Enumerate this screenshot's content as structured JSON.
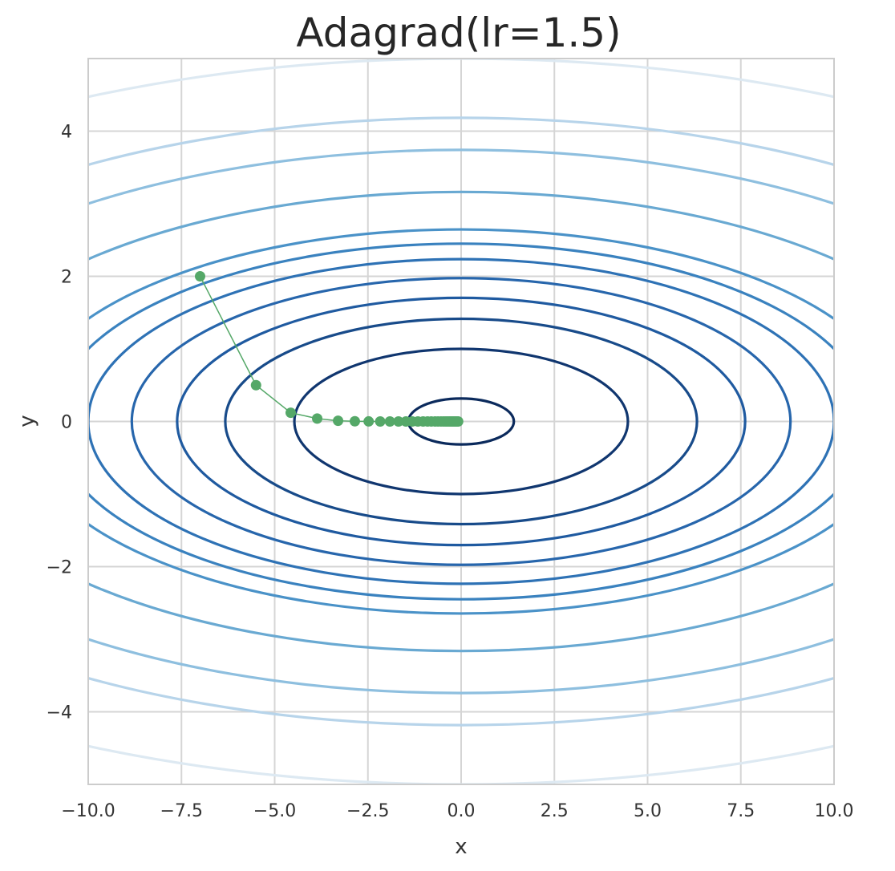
{
  "chart_data": {
    "type": "line",
    "title": "Adagrad(lr=1.5)",
    "xlabel": "x",
    "ylabel": "y",
    "xlim": [
      -10,
      10
    ],
    "ylim": [
      -5,
      5
    ],
    "xticks": [
      -10,
      -7.5,
      -5,
      -2.5,
      0,
      2.5,
      5,
      7.5,
      10
    ],
    "xtick_labels": [
      "−10.0",
      "−7.5",
      "−5.0",
      "−2.5",
      "0.0",
      "2.5",
      "5.0",
      "7.5",
      "10.0"
    ],
    "yticks": [
      -4,
      -2,
      0,
      2,
      4
    ],
    "ytick_labels": [
      "−4",
      "−2",
      "0",
      "2",
      "4"
    ],
    "grid": true,
    "contour": {
      "function": "f(x, y) = 0.1 x^2 + 2 y^2",
      "colormap": "Blues_r",
      "levels": [
        0.2,
        2.0,
        4.0,
        5.8,
        7.8,
        10.0,
        12.0,
        14.0,
        20.0,
        28.0,
        35.0,
        50.0
      ],
      "colors": [
        "#0b2a5c",
        "#10366f",
        "#184b8a",
        "#1f5aa0",
        "#2766ac",
        "#2e72b5",
        "#3a82bf",
        "#4a92c8",
        "#69a9d2",
        "#8ebfdf",
        "#b7d4ea",
        "#dde9f2"
      ]
    },
    "series": [
      {
        "color": "#55a868",
        "marker": "o",
        "x": [
          -7.0,
          -5.5,
          -4.57,
          -3.86,
          -3.3,
          -2.85,
          -2.48,
          -2.17,
          -1.91,
          -1.68,
          -1.48,
          -1.31,
          -1.16,
          -1.02,
          -0.9,
          -0.8,
          -0.7,
          -0.62,
          -0.54,
          -0.47,
          -0.41,
          -0.36,
          -0.31,
          -0.27,
          -0.23,
          -0.2,
          -0.17,
          -0.14,
          -0.11,
          -0.08
        ],
        "y": [
          2.0,
          0.5,
          0.12,
          0.04,
          0.01,
          0.003,
          0.0008,
          0.0002,
          0.0,
          0.0,
          0.0,
          0.0,
          0.0,
          0.0,
          0.0,
          0.0,
          0.0,
          0.0,
          0.0,
          0.0,
          0.0,
          0.0,
          0.0,
          0.0,
          0.0,
          0.0,
          0.0,
          0.0,
          0.0,
          0.0
        ]
      }
    ]
  }
}
